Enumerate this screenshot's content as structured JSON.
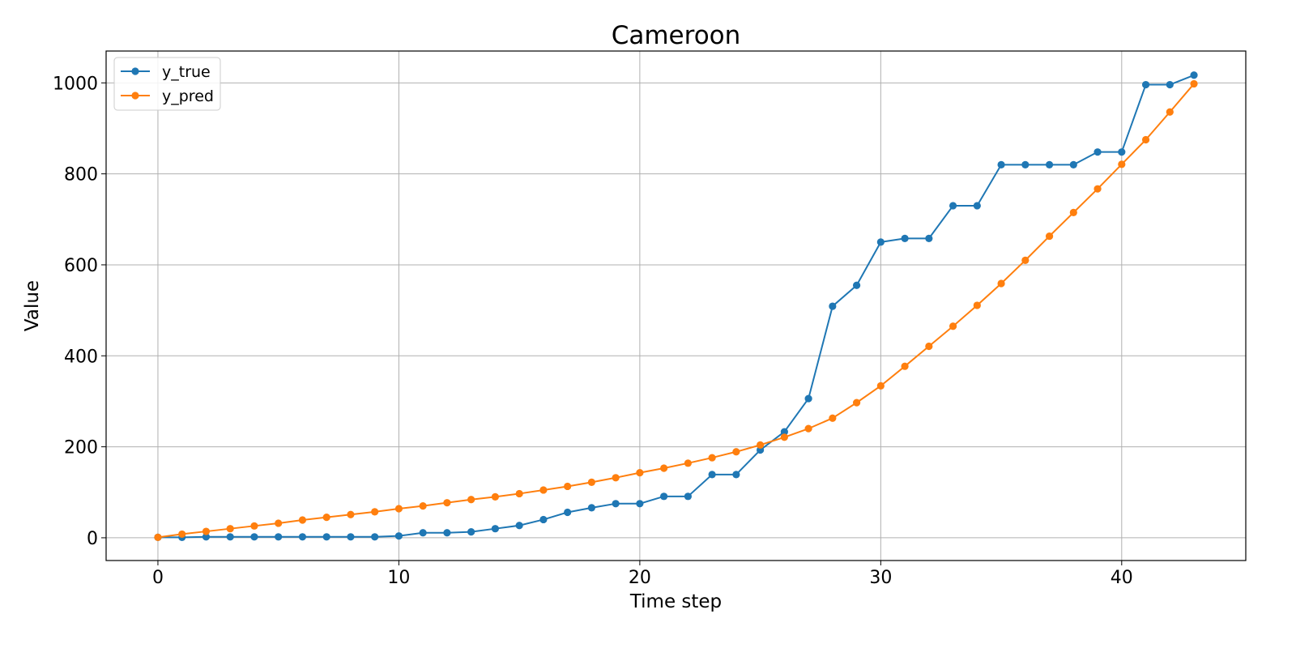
{
  "chart_data": {
    "type": "line",
    "title": "Cameroon",
    "xlabel": "Time step",
    "ylabel": "Value",
    "xlim": [
      -2.15,
      45.15
    ],
    "ylim": [
      -50,
      1070
    ],
    "xticks": [
      0,
      10,
      20,
      30,
      40
    ],
    "yticks": [
      0,
      200,
      400,
      600,
      800,
      1000
    ],
    "grid": true,
    "legend_position": "upper-left",
    "x": [
      0,
      1,
      2,
      3,
      4,
      5,
      6,
      7,
      8,
      9,
      10,
      11,
      12,
      13,
      14,
      15,
      16,
      17,
      18,
      19,
      20,
      21,
      22,
      23,
      24,
      25,
      26,
      27,
      28,
      29,
      30,
      31,
      32,
      33,
      34,
      35,
      36,
      37,
      38,
      39,
      40,
      41,
      42,
      43
    ],
    "series": [
      {
        "name": "y_true",
        "color": "#1f77b4",
        "values": [
          1,
          1,
          2,
          2,
          2,
          2,
          2,
          2,
          2,
          2,
          4,
          11,
          11,
          13,
          20,
          27,
          40,
          56,
          66,
          75,
          75,
          91,
          91,
          139,
          139,
          193,
          233,
          306,
          509,
          555,
          650,
          658,
          658,
          730,
          730,
          820,
          820,
          820,
          820,
          848,
          848,
          996,
          996,
          1017
        ]
      },
      {
        "name": "y_pred",
        "color": "#ff7f0e",
        "values": [
          1,
          8,
          14,
          20,
          26,
          32,
          39,
          45,
          51,
          57,
          64,
          70,
          77,
          84,
          90,
          97,
          105,
          113,
          122,
          132,
          143,
          153,
          164,
          176,
          189,
          204,
          221,
          240,
          263,
          297,
          334,
          377,
          421,
          465,
          511,
          559,
          610,
          663,
          715,
          767,
          821,
          875,
          936,
          998
        ]
      }
    ]
  }
}
